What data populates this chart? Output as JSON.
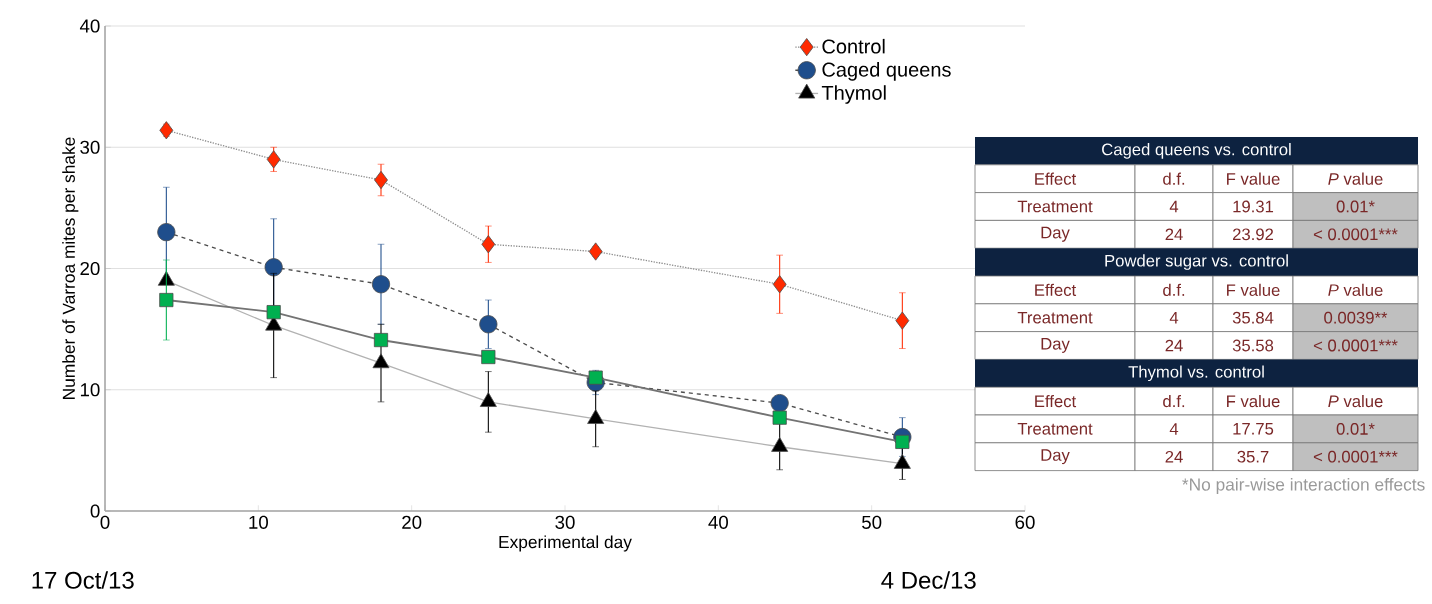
{
  "chart_data": {
    "type": "line",
    "xlabel": "Experimental day",
    "ylabel": "Number of Varroa mites per shake",
    "x": [
      4,
      11,
      18,
      25,
      32,
      44,
      52
    ],
    "xlim": [
      0,
      60
    ],
    "xticks": [
      0,
      10,
      20,
      30,
      40,
      50,
      60
    ],
    "ylim": [
      0,
      40
    ],
    "yticks": [
      0,
      10,
      20,
      30,
      40
    ],
    "grid": "y",
    "legend": "top right",
    "series": [
      {
        "name": "Control",
        "color": "#ff2a00",
        "marker": "diamond",
        "line_style": "dotted",
        "values": [
          31.4,
          29.0,
          27.3,
          22.0,
          21.4,
          18.7,
          15.7
        ],
        "errors": [
          0.5,
          1.0,
          1.3,
          1.5,
          0.4,
          2.4,
          2.3
        ]
      },
      {
        "name": "Caged queens",
        "color": "#1f4e8c",
        "marker": "circle",
        "line_style": "dashed",
        "values": [
          23.0,
          20.1,
          18.7,
          15.4,
          10.6,
          8.9,
          6.1
        ],
        "errors": [
          3.7,
          4.0,
          3.3,
          2.0,
          1.0,
          0.5,
          1.6
        ]
      },
      {
        "color": "#00b050",
        "marker": "square",
        "line_style": "solid",
        "values": [
          17.4,
          16.4,
          14.1,
          12.7,
          11.0,
          7.7,
          5.7
        ],
        "errors": [
          3.3,
          null,
          null,
          null,
          null,
          null,
          null
        ]
      },
      {
        "name": "Thymol",
        "color": "#000000",
        "marker": "triangle",
        "line_style": "solid",
        "values": [
          19.0,
          15.3,
          12.2,
          9.0,
          7.6,
          5.3,
          3.9
        ],
        "errors": [
          null,
          4.3,
          3.2,
          2.5,
          2.3,
          1.9,
          1.3
        ]
      }
    ],
    "annotations": [
      "Caged queens vs. control",
      "Effect",
      "d.f.",
      "F value",
      "*P* value",
      "Treatment",
      "4",
      "19.31",
      "0.01*",
      "Day",
      "24",
      "23.92",
      "< 0.0001***",
      "Powder sugar vs. control",
      "Effect",
      "d.f.",
      "F value",
      "*P* value",
      "Treatment",
      "4",
      "35.84",
      "0.0039**",
      "Day",
      "24",
      "35.58",
      "< 0.0001***",
      "Thymol vs. control",
      "Effect",
      "d.f.",
      "F value",
      "*P* value",
      "Treatment",
      "4",
      "17.75",
      "0.01*",
      "Day",
      "24",
      "35.7",
      "< 0.0001***",
      "*No pair-wise interaction effects",
      "17 Oct/13",
      "4 Dec/13"
    ]
  }
}
